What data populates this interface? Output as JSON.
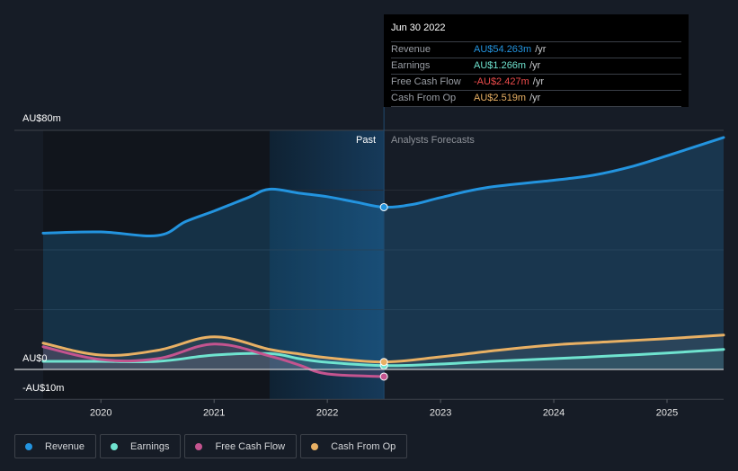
{
  "tooltip": {
    "date": "Jun 30 2022",
    "rows": [
      {
        "label": "Revenue",
        "value": "AU$54.263m",
        "unit": "/yr",
        "color": "#2394df"
      },
      {
        "label": "Earnings",
        "value": "AU$1.266m",
        "unit": "/yr",
        "color": "#6fe3cf"
      },
      {
        "label": "Free Cash Flow",
        "value": "-AU$2.427m",
        "unit": "/yr",
        "color": "#ee4c4c"
      },
      {
        "label": "Cash From Op",
        "value": "AU$2.519m",
        "unit": "/yr",
        "color": "#e8b064"
      }
    ]
  },
  "regions": {
    "past": "Past",
    "forecast": "Analysts Forecasts"
  },
  "legend": [
    {
      "label": "Revenue",
      "color": "#2394df"
    },
    {
      "label": "Earnings",
      "color": "#6fe3cf"
    },
    {
      "label": "Free Cash Flow",
      "color": "#c4548f"
    },
    {
      "label": "Cash From Op",
      "color": "#e8b064"
    }
  ],
  "chart_data": {
    "type": "line",
    "title": "",
    "xlabel": "",
    "ylabel": "",
    "unit": "AU$ millions",
    "xlim": [
      2019.49,
      2025.5
    ],
    "ylim": [
      -10,
      80
    ],
    "y_tick_labels": [
      {
        "value": 80,
        "label": "AU$80m"
      },
      {
        "value": 0,
        "label": "AU$0"
      },
      {
        "value": -10,
        "label": "-AU$10m"
      }
    ],
    "gridlines": [
      80,
      60,
      40,
      20,
      0
    ],
    "x_tick_labels": [
      {
        "value": 2020,
        "label": "2020"
      },
      {
        "value": 2021,
        "label": "2021"
      },
      {
        "value": 2022,
        "label": "2022"
      },
      {
        "value": 2023,
        "label": "2023"
      },
      {
        "value": 2024,
        "label": "2024"
      },
      {
        "value": 2025,
        "label": "2025"
      }
    ],
    "past_region": [
      2021.49,
      2022.5
    ],
    "marker_x": 2022.5,
    "legend_position": "bottom-left",
    "series": [
      {
        "name": "Revenue",
        "color": "#2394df",
        "points": [
          [
            2019.49,
            45.6
          ],
          [
            2020.0,
            46.0
          ],
          [
            2020.5,
            44.8
          ],
          [
            2020.75,
            49.5
          ],
          [
            2021.0,
            53.0
          ],
          [
            2021.3,
            57.5
          ],
          [
            2021.49,
            60.3
          ],
          [
            2021.75,
            59.0
          ],
          [
            2022.0,
            57.8
          ],
          [
            2022.25,
            56.0
          ],
          [
            2022.5,
            54.3
          ],
          [
            2022.75,
            55.2
          ],
          [
            2023.0,
            57.5
          ],
          [
            2023.4,
            60.8
          ],
          [
            2024.0,
            63.3
          ],
          [
            2024.35,
            65.0
          ],
          [
            2024.7,
            68.0
          ],
          [
            2025.0,
            71.5
          ],
          [
            2025.5,
            77.6
          ]
        ]
      },
      {
        "name": "Earnings",
        "color": "#6fe3cf",
        "points": [
          [
            2019.49,
            2.7
          ],
          [
            2020.0,
            2.7
          ],
          [
            2020.5,
            2.7
          ],
          [
            2021.0,
            4.8
          ],
          [
            2021.49,
            5.3
          ],
          [
            2021.75,
            3.6
          ],
          [
            2022.0,
            2.4
          ],
          [
            2022.5,
            1.3
          ],
          [
            2023.0,
            1.8
          ],
          [
            2023.5,
            2.8
          ],
          [
            2024.0,
            3.6
          ],
          [
            2024.5,
            4.5
          ],
          [
            2025.0,
            5.5
          ],
          [
            2025.5,
            6.7
          ]
        ]
      },
      {
        "name": "Free Cash Flow",
        "color": "#c4548f",
        "points": [
          [
            2019.49,
            7.6
          ],
          [
            2020.0,
            3.3
          ],
          [
            2020.5,
            3.6
          ],
          [
            2021.0,
            8.5
          ],
          [
            2021.49,
            4.5
          ],
          [
            2021.75,
            1.5
          ],
          [
            2022.0,
            -1.5
          ],
          [
            2022.5,
            -2.4
          ]
        ]
      },
      {
        "name": "Cash From Op",
        "color": "#e8b064",
        "points": [
          [
            2019.49,
            8.8
          ],
          [
            2020.0,
            4.8
          ],
          [
            2020.5,
            6.4
          ],
          [
            2021.0,
            10.9
          ],
          [
            2021.49,
            6.7
          ],
          [
            2021.75,
            5.2
          ],
          [
            2022.0,
            3.9
          ],
          [
            2022.5,
            2.5
          ],
          [
            2023.0,
            4.2
          ],
          [
            2023.5,
            6.4
          ],
          [
            2024.0,
            8.2
          ],
          [
            2024.5,
            9.3
          ],
          [
            2025.0,
            10.3
          ],
          [
            2025.5,
            11.5
          ]
        ]
      }
    ]
  }
}
